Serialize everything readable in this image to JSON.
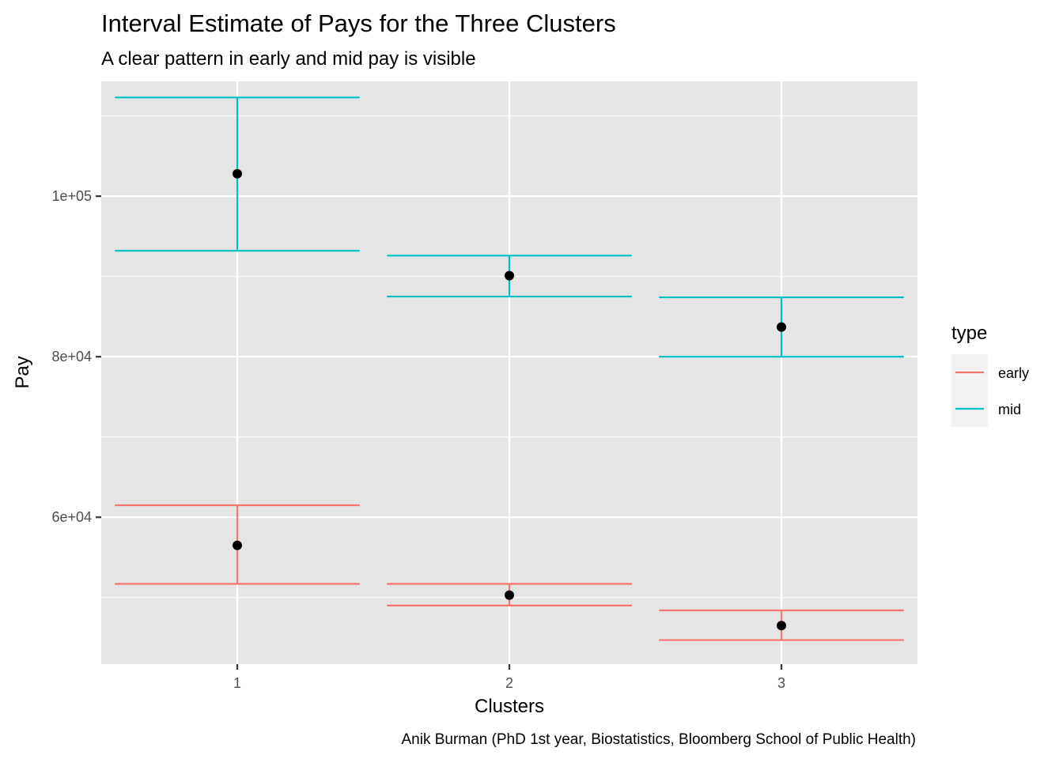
{
  "chart_data": {
    "type": "errorbar",
    "title": "Interval Estimate of Pays for the Three Clusters",
    "subtitle": "A clear pattern in early and mid pay is visible",
    "xlabel": "Clusters",
    "ylabel": "Pay",
    "caption": "Anik Burman (PhD 1st year, Biostatistics, Bloomberg School of Public Health)",
    "categories": [
      "1",
      "2",
      "3"
    ],
    "ylim": [
      41700,
      114300
    ],
    "y_ticks": [
      {
        "value": 60000,
        "label": "6e+04"
      },
      {
        "value": 80000,
        "label": "8e+04"
      },
      {
        "value": 100000,
        "label": "1e+05"
      }
    ],
    "y_minor_ticks": [
      50000,
      70000,
      90000,
      110000
    ],
    "grid": true,
    "legend": {
      "title": "type",
      "placement": "right"
    },
    "series": [
      {
        "name": "early",
        "color": "#F8766D",
        "intervals": [
          {
            "x": "1",
            "lower": 51700,
            "upper": 61500
          },
          {
            "x": "2",
            "lower": 49000,
            "upper": 51700
          },
          {
            "x": "3",
            "lower": 44700,
            "upper": 48400
          }
        ]
      },
      {
        "name": "mid",
        "color": "#00BFC4",
        "intervals": [
          {
            "x": "1",
            "lower": 93200,
            "upper": 112300
          },
          {
            "x": "2",
            "lower": 87500,
            "upper": 92600
          },
          {
            "x": "3",
            "lower": 80000,
            "upper": 87400
          }
        ]
      }
    ],
    "points": [
      {
        "x": "1",
        "value": 56500
      },
      {
        "x": "2",
        "value": 50300
      },
      {
        "x": "3",
        "value": 46500
      },
      {
        "x": "1",
        "value": 102800
      },
      {
        "x": "2",
        "value": 90100
      },
      {
        "x": "3",
        "value": 83700
      }
    ],
    "point_color": "#000000",
    "panel_background": "#E5E5E5",
    "grid_color": "#FFFFFF",
    "legend_key_background": "#F2F2F2"
  }
}
